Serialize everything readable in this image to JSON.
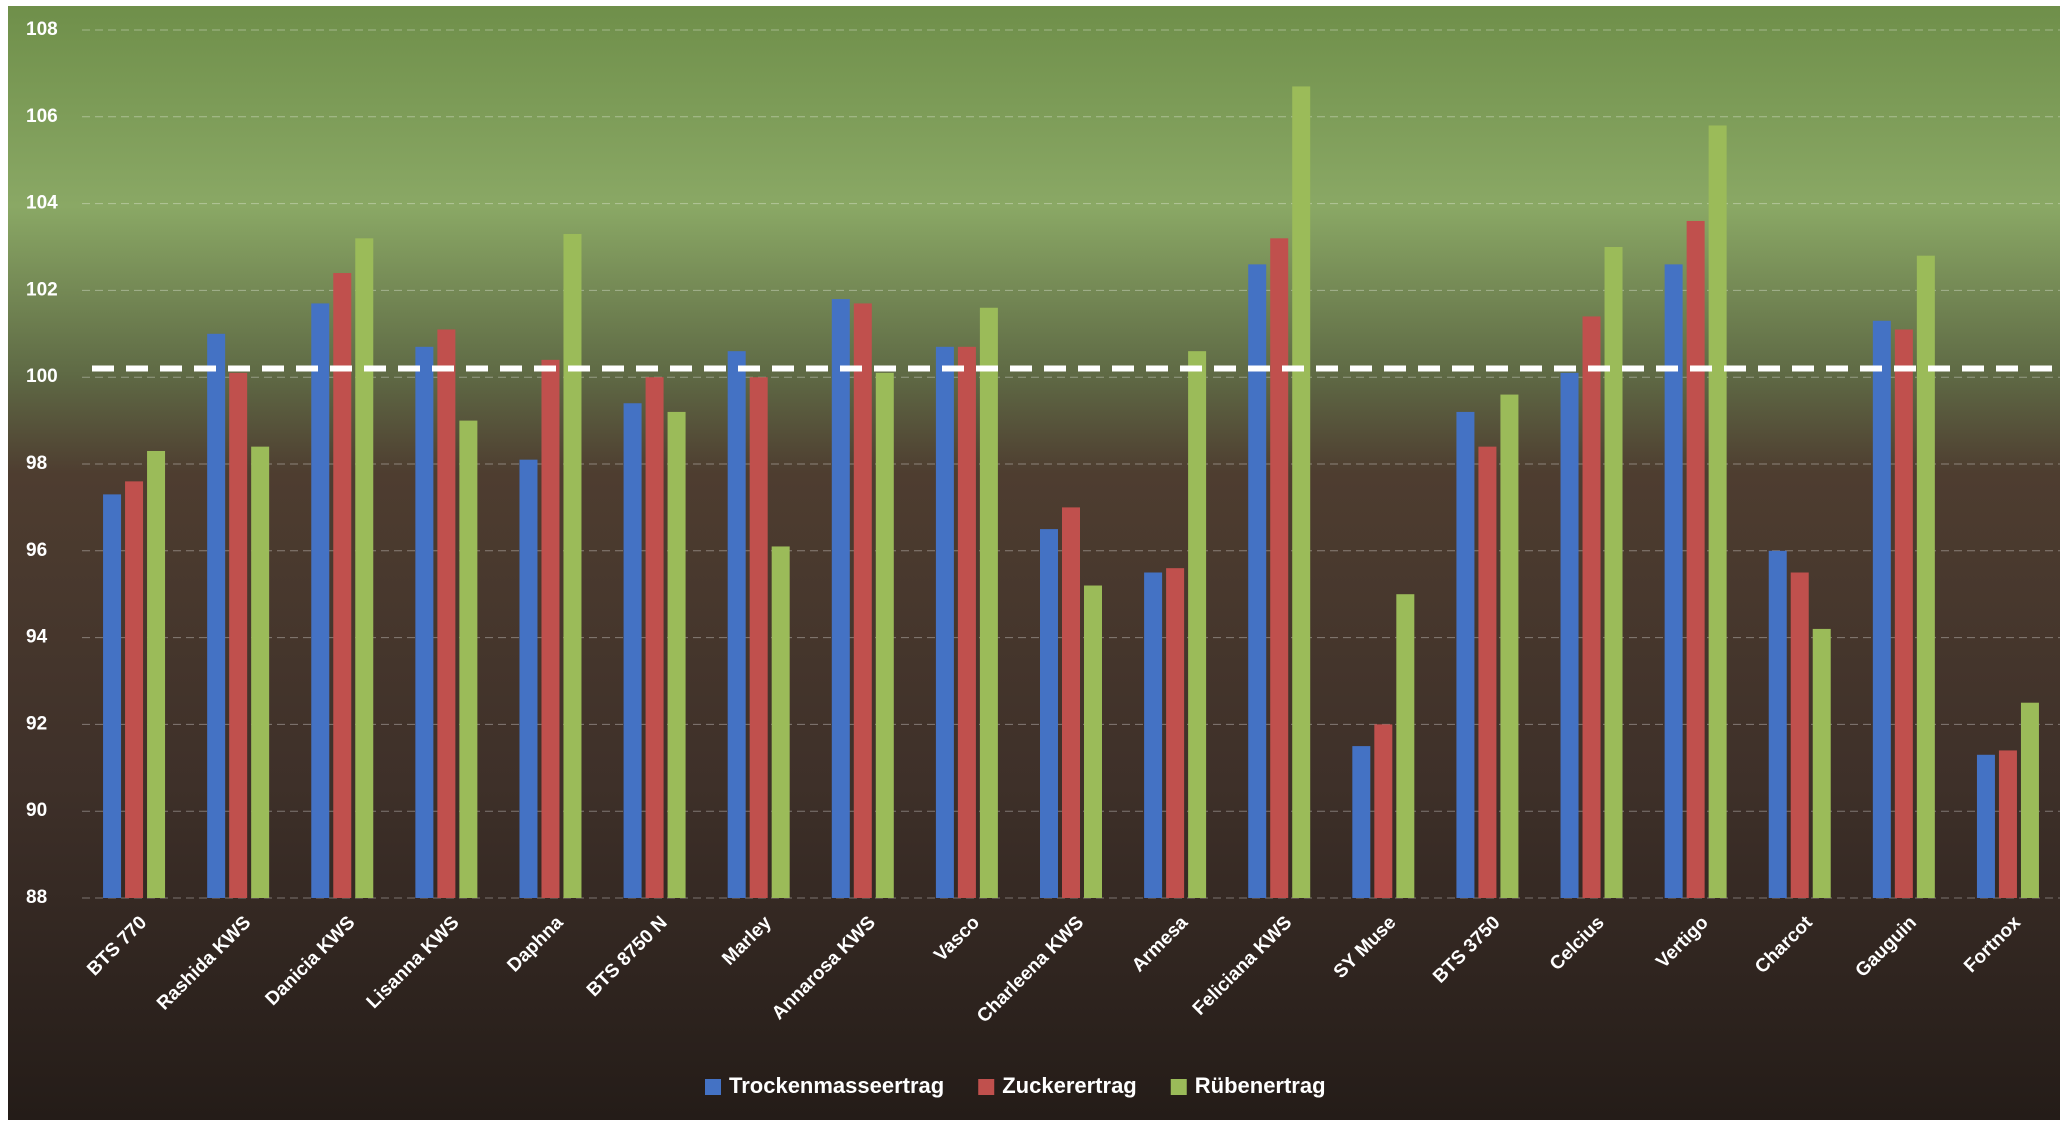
{
  "chart_data": {
    "type": "bar",
    "categories": [
      "BTS 770",
      "Rashida KWS",
      "Danicia KWS",
      "Lisanna KWS",
      "Daphna",
      "BTS 8750 N",
      "Marley",
      "Annarosa KWS",
      "Vasco",
      "Charleena KWS",
      "Armesa",
      "Feliciana KWS",
      "SY Muse",
      "BTS 3750",
      "Celcius",
      "Vertigo",
      "Charcot",
      "Gauguin",
      "Fortnox"
    ],
    "series": [
      {
        "name": "Trockenmasseertrag",
        "color": "#4472c4",
        "values": [
          97.3,
          101.0,
          101.7,
          100.7,
          98.1,
          99.4,
          100.6,
          101.8,
          100.7,
          96.5,
          95.5,
          102.6,
          91.5,
          99.2,
          100.1,
          102.6,
          96.0,
          101.3,
          91.3
        ]
      },
      {
        "name": "Zuckerertrag",
        "color": "#c0504d",
        "values": [
          97.6,
          100.1,
          102.4,
          101.1,
          100.4,
          100.0,
          100.0,
          101.7,
          100.7,
          97.0,
          95.6,
          103.2,
          92.0,
          98.4,
          101.4,
          103.6,
          95.5,
          101.1,
          91.4
        ]
      },
      {
        "name": "Rübenertrag",
        "color": "#9bbb59",
        "values": [
          98.3,
          98.4,
          103.2,
          99.0,
          103.3,
          99.2,
          96.1,
          100.1,
          101.6,
          95.2,
          100.6,
          106.7,
          95.0,
          99.6,
          103.0,
          105.8,
          94.2,
          102.8,
          92.5
        ]
      }
    ],
    "ylim": [
      88,
      108
    ],
    "yticks": [
      88,
      90,
      92,
      94,
      96,
      98,
      100,
      102,
      104,
      106,
      108
    ],
    "grid": true,
    "reference_value": 100.2,
    "legend": "bottom"
  }
}
